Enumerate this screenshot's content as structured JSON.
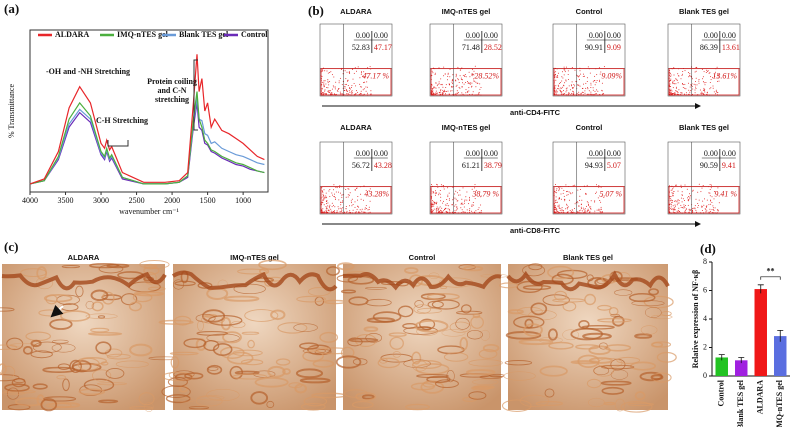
{
  "chart_data": [
    {
      "type": "line",
      "panel_label": "(a)",
      "xlabel": "wavenumber cm⁻¹",
      "ylabel": "% Transmittance",
      "x": [
        4000,
        3800,
        3600,
        3450,
        3300,
        3150,
        3000,
        2950,
        2920,
        2880,
        2850,
        2700,
        2400,
        2100,
        1900,
        1780,
        1700,
        1650,
        1620,
        1580,
        1540,
        1500,
        1450,
        1400,
        1300,
        1200,
        1100,
        1000,
        900,
        800,
        700
      ],
      "xlim": [
        4000,
        650
      ],
      "ylim": [
        0,
        1
      ],
      "xticks": [
        4000,
        3500,
        3000,
        2500,
        2000,
        1500,
        1000
      ],
      "series": [
        {
          "name": "ALDARA",
          "color": "#e8262a",
          "values": [
            0.05,
            0.08,
            0.25,
            0.52,
            0.65,
            0.55,
            0.3,
            0.27,
            0.32,
            0.26,
            0.28,
            0.12,
            0.06,
            0.06,
            0.07,
            0.12,
            0.55,
            0.85,
            0.62,
            0.7,
            0.5,
            0.55,
            0.4,
            0.45,
            0.38,
            0.36,
            0.33,
            0.3,
            0.26,
            0.22,
            0.2
          ]
        },
        {
          "name": "IMQ-nTES gel",
          "color": "#4caf3e",
          "values": [
            0.05,
            0.07,
            0.22,
            0.45,
            0.55,
            0.47,
            0.25,
            0.22,
            0.27,
            0.21,
            0.23,
            0.09,
            0.05,
            0.05,
            0.06,
            0.1,
            0.45,
            0.62,
            0.45,
            0.4,
            0.32,
            0.3,
            0.26,
            0.25,
            0.22,
            0.2,
            0.18,
            0.17,
            0.15,
            0.13,
            0.12
          ]
        },
        {
          "name": "Blank TES gel",
          "color": "#6a9bd8",
          "values": [
            0.05,
            0.07,
            0.21,
            0.42,
            0.51,
            0.45,
            0.24,
            0.21,
            0.26,
            0.2,
            0.22,
            0.09,
            0.05,
            0.05,
            0.06,
            0.1,
            0.42,
            0.58,
            0.45,
            0.44,
            0.36,
            0.35,
            0.3,
            0.31,
            0.27,
            0.25,
            0.23,
            0.22,
            0.2,
            0.18,
            0.17
          ]
        },
        {
          "name": "Control",
          "color": "#6a2bb8",
          "values": [
            0.05,
            0.07,
            0.2,
            0.4,
            0.49,
            0.43,
            0.23,
            0.2,
            0.25,
            0.19,
            0.21,
            0.08,
            0.05,
            0.05,
            0.06,
            0.09,
            0.4,
            0.55,
            0.4,
            0.38,
            0.3,
            0.29,
            0.25,
            0.24,
            0.21,
            0.19,
            0.17,
            0.16,
            0.14,
            0.13,
            0.12
          ]
        }
      ],
      "annotations": [
        "-OH and -NH Stretching",
        "C-H  Stretching"
      ],
      "annotation_block": [
        "Protein coiling",
        "and C-N",
        "stretching"
      ]
    },
    {
      "type": "bar",
      "panel_label": "(d)",
      "ylabel": "Relative expression of NF-κβ",
      "categories": [
        "Control",
        "Blank TES gel",
        "ALDARA",
        "IMQ-nTES gel"
      ],
      "values": [
        1.3,
        1.1,
        6.1,
        2.8
      ],
      "errors": [
        0.2,
        0.2,
        0.3,
        0.4
      ],
      "colors": [
        "#22c322",
        "#a020e0",
        "#f01818",
        "#5a6ee0"
      ],
      "ylim": [
        0,
        8
      ],
      "yticks": [
        0,
        2,
        4,
        6,
        8
      ],
      "significance": "**"
    }
  ],
  "flow_cytometry": {
    "panel_label": "(b)",
    "rows": [
      {
        "axis_label": "anti-CD4-FITC",
        "plots": [
          {
            "title": "ALDARA",
            "quadrants": [
              "0.00",
              "0.00",
              "52.83",
              "47.17"
            ],
            "gate_label": "47.17 %"
          },
          {
            "title": "IMQ-nTES gel",
            "quadrants": [
              "0.00",
              "0.00",
              "71.48",
              "28.52"
            ],
            "gate_label": "*28.52%"
          },
          {
            "title": "Control",
            "quadrants": [
              "0.00",
              "0.00",
              "90.91",
              "9.09"
            ],
            "gate_label": "9.09%"
          },
          {
            "title": "Blank TES gel",
            "quadrants": [
              "0.00",
              "0.00",
              "86.39",
              "13.61"
            ],
            "gate_label": "13.61%"
          }
        ]
      },
      {
        "axis_label": "anti-CD8-FITC",
        "plots": [
          {
            "title": "ALDARA",
            "quadrants": [
              "0.00",
              "0.00",
              "56.72",
              "43.28"
            ],
            "gate_label": "43.28%"
          },
          {
            "title": "IMQ-nTES gel",
            "quadrants": [
              "0.00",
              "0.00",
              "61.21",
              "38.79"
            ],
            "gate_label": "38.79 %"
          },
          {
            "title": "Control",
            "quadrants": [
              "0.00",
              "0.00",
              "94.93",
              "5.07"
            ],
            "gate_label": "5.07 %"
          },
          {
            "title": "Blank TES gel",
            "quadrants": [
              "0.00",
              "0.00",
              "90.59",
              "9.41"
            ],
            "gate_label": "9.41 %"
          }
        ]
      }
    ]
  },
  "histology": {
    "panel_label": "(c)",
    "titles": [
      "ALDARA",
      "IMQ-nTES gel",
      "Control",
      "Blank TES gel"
    ]
  }
}
